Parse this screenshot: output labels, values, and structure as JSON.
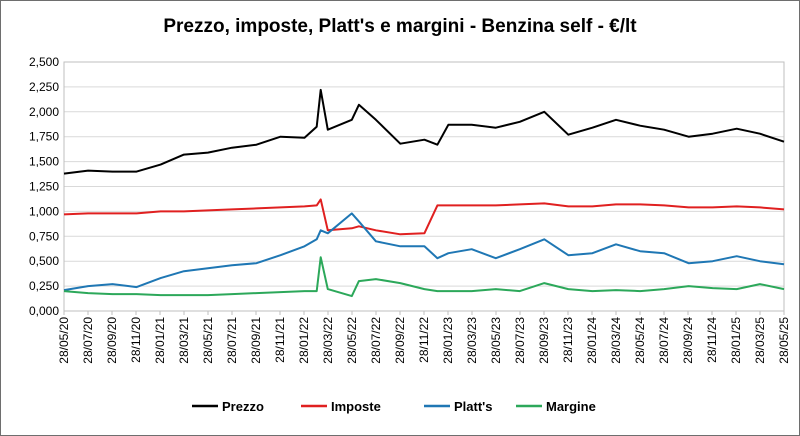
{
  "chart_data": {
    "type": "line",
    "title": "Prezzo, imposte, Platt's e margini - Benzina self - €/lt",
    "xlabel": "",
    "ylabel": "",
    "ylim": [
      0,
      2.5
    ],
    "grid": true,
    "legend": "bottom",
    "y_ticks": [
      "0,000",
      "0,250",
      "0,500",
      "0,750",
      "1,000",
      "1,250",
      "1,500",
      "1,750",
      "2,000",
      "2,250",
      "2,500"
    ],
    "x_ticks": [
      "28/05/20",
      "28/07/20",
      "28/09/20",
      "28/11/20",
      "28/01/21",
      "28/03/21",
      "28/05/21",
      "28/07/21",
      "28/09/21",
      "28/11/21",
      "28/01/22",
      "28/03/22",
      "28/05/22",
      "28/07/22",
      "28/09/22",
      "28/11/22",
      "28/01/23",
      "28/03/23",
      "28/05/23",
      "28/07/23",
      "28/09/23",
      "28/11/23",
      "28/01/24",
      "28/03/24",
      "28/05/24",
      "28/07/24",
      "28/09/24",
      "28/11/24",
      "28/01/25",
      "28/03/25",
      "28/05/25"
    ],
    "x": [
      "2020-05-28",
      "2020-07-28",
      "2020-09-28",
      "2020-11-28",
      "2021-01-28",
      "2021-03-28",
      "2021-05-28",
      "2021-07-28",
      "2021-09-28",
      "2021-11-28",
      "2022-01-28",
      "2022-02-28",
      "2022-03-10",
      "2022-03-28",
      "2022-05-28",
      "2022-06-15",
      "2022-07-28",
      "2022-09-28",
      "2022-11-28",
      "2022-12-31",
      "2023-01-28",
      "2023-03-28",
      "2023-05-28",
      "2023-07-28",
      "2023-09-28",
      "2023-11-28",
      "2024-01-28",
      "2024-03-28",
      "2024-05-28",
      "2024-07-28",
      "2024-09-28",
      "2024-11-28",
      "2025-01-28",
      "2025-03-28",
      "2025-05-28"
    ],
    "series": [
      {
        "name": "Prezzo",
        "color": "#000000",
        "values": [
          1.38,
          1.41,
          1.4,
          1.4,
          1.47,
          1.57,
          1.59,
          1.64,
          1.67,
          1.75,
          1.74,
          1.85,
          2.22,
          1.82,
          1.92,
          2.07,
          1.92,
          1.68,
          1.72,
          1.67,
          1.87,
          1.87,
          1.84,
          1.9,
          2.0,
          1.77,
          1.84,
          1.92,
          1.86,
          1.82,
          1.75,
          1.78,
          1.83,
          1.78,
          1.7
        ]
      },
      {
        "name": "Imposte",
        "color": "#e02020",
        "values": [
          0.97,
          0.98,
          0.98,
          0.98,
          1.0,
          1.0,
          1.01,
          1.02,
          1.03,
          1.04,
          1.05,
          1.06,
          1.12,
          0.81,
          0.83,
          0.85,
          0.81,
          0.77,
          0.78,
          1.06,
          1.06,
          1.06,
          1.06,
          1.07,
          1.08,
          1.05,
          1.05,
          1.07,
          1.07,
          1.06,
          1.04,
          1.04,
          1.05,
          1.04,
          1.02
        ]
      },
      {
        "name": "Platt's",
        "color": "#1f77b4",
        "values": [
          0.21,
          0.25,
          0.27,
          0.24,
          0.33,
          0.4,
          0.43,
          0.46,
          0.48,
          0.56,
          0.65,
          0.72,
          0.81,
          0.78,
          0.98,
          0.9,
          0.7,
          0.65,
          0.65,
          0.53,
          0.58,
          0.62,
          0.53,
          0.62,
          0.72,
          0.56,
          0.58,
          0.67,
          0.6,
          0.58,
          0.48,
          0.5,
          0.55,
          0.5,
          0.47
        ]
      },
      {
        "name": "Margine",
        "color": "#2ca85a",
        "values": [
          0.2,
          0.18,
          0.17,
          0.17,
          0.16,
          0.16,
          0.16,
          0.17,
          0.18,
          0.19,
          0.2,
          0.2,
          0.54,
          0.22,
          0.15,
          0.3,
          0.32,
          0.28,
          0.22,
          0.2,
          0.2,
          0.2,
          0.22,
          0.2,
          0.28,
          0.22,
          0.2,
          0.21,
          0.2,
          0.22,
          0.25,
          0.23,
          0.22,
          0.27,
          0.22
        ]
      }
    ]
  }
}
